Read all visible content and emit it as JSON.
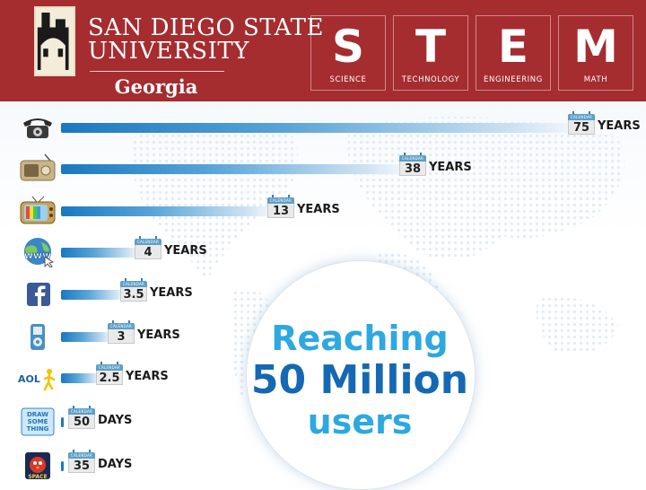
{
  "header": {
    "university_line1": "SAN DIEGO STATE",
    "university_line2": "UNIVERSITY",
    "campus": "Georgia",
    "stem": [
      {
        "letter": "S",
        "word": "SCIENCE"
      },
      {
        "letter": "T",
        "word": "TECHNOLOGY"
      },
      {
        "letter": "E",
        "word": "ENGINEERING"
      },
      {
        "letter": "M",
        "word": "MATH"
      }
    ]
  },
  "calendar_label": "CALENDAR",
  "chart_data": {
    "type": "bar",
    "orientation": "horizontal",
    "title_lines": [
      "Reaching",
      "50 Million",
      "users"
    ],
    "categories": [
      "Telephone",
      "Radio",
      "Television",
      "World Wide Web",
      "Facebook",
      "iPod",
      "AOL",
      "Draw Something",
      "Angry Birds Space"
    ],
    "values": [
      75,
      38,
      13,
      4,
      3.5,
      3,
      2.5,
      50,
      35
    ],
    "display_values": [
      "75",
      "38",
      "13",
      "4",
      "3.5",
      "3",
      "2.5",
      "50",
      "35"
    ],
    "units": [
      "YEARS",
      "YEARS",
      "YEARS",
      "YEARS",
      "YEARS",
      "YEARS",
      "YEARS",
      "DAYS",
      "DAYS"
    ],
    "icons": [
      "telephone-icon",
      "radio-icon",
      "television-icon",
      "www-icon",
      "facebook-icon",
      "ipod-icon",
      "aol-icon",
      "draw-something-icon",
      "angry-birds-space-icon"
    ],
    "aol_text": "AOL",
    "draw_something_text": [
      "DRAW",
      "SOME",
      "THING"
    ],
    "bar_color": "#1a78c0",
    "title_colors": [
      "#2ea8e0",
      "#1568b3",
      "#2ea8e0"
    ]
  }
}
